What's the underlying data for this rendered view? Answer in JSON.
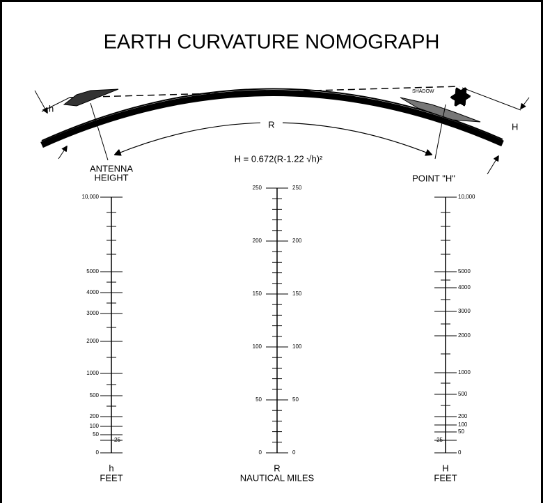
{
  "title": "EARTH CURVATURE NOMOGRAPH",
  "labels": {
    "h": "h",
    "H": "H",
    "R": "R",
    "shadow": "SHADOW",
    "formula": "H = 0.672(R-1.22 √h)²"
  },
  "scales": [
    {
      "header": [
        "ANTENNA",
        "HEIGHT"
      ],
      "ticks": [
        "10,000",
        "5000",
        "4000",
        "3000",
        "2000",
        "1000",
        "500",
        "200",
        "100",
        "50",
        "25",
        "0"
      ],
      "footer": [
        "h",
        "FEET"
      ]
    },
    {
      "header": [],
      "ticks": [
        "250",
        "200",
        "150",
        "100",
        "50",
        "0"
      ],
      "footer": [
        "R",
        "NAUTICAL MILES"
      ]
    },
    {
      "header": [
        "POINT \"H\""
      ],
      "ticks": [
        "10,000",
        "5000",
        "4000",
        "3000",
        "2000",
        "1000",
        "500",
        "200",
        "100",
        "50",
        "25",
        "0"
      ],
      "footer": [
        "H",
        "FEET"
      ]
    }
  ]
}
